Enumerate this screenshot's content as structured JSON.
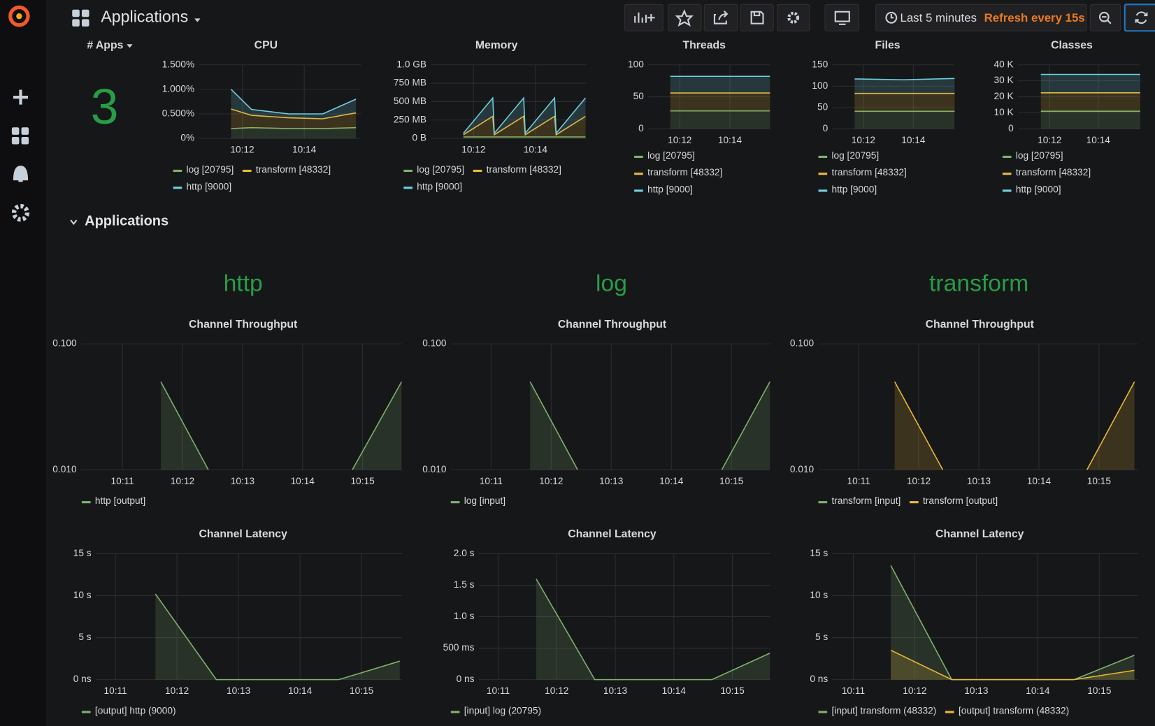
{
  "header": {
    "title": "Applications",
    "time_range": "Last 5 minutes",
    "refresh": "Refresh every 15s"
  },
  "stat": {
    "title": "# Apps",
    "value": 3
  },
  "row_title": "Applications",
  "app_titles": [
    "http",
    "log",
    "transform"
  ],
  "chart_data": [
    {
      "type": "line",
      "title": "CPU",
      "stacked": true,
      "fill": true,
      "grid": true,
      "x": [
        611.64,
        612.3,
        613.5,
        614.6,
        615.67
      ],
      "xlim": [
        610.6,
        615.83
      ],
      "xticks": [
        {
          "value": 612,
          "label": "10:12"
        },
        {
          "value": 614,
          "label": "10:14"
        }
      ],
      "ylim": [
        0,
        1.5
      ],
      "yticks": [
        {
          "value": 0,
          "label": "0%"
        },
        {
          "value": 0.5,
          "label": "0.500%"
        },
        {
          "value": 1,
          "label": "1.000%"
        },
        {
          "value": 1.5,
          "label": "1.500%"
        }
      ],
      "series": [
        {
          "name": "log [20795]",
          "color": "#7eb26d",
          "values": [
            0.2,
            0.22,
            0.2,
            0.2,
            0.22
          ]
        },
        {
          "name": "transform [48332]",
          "color": "#eab839",
          "values": [
            0.4,
            0.25,
            0.22,
            0.2,
            0.3
          ]
        },
        {
          "name": "http [9000]",
          "color": "#6ed0e0",
          "values": [
            0.4,
            0.12,
            0.08,
            0.1,
            0.28
          ]
        }
      ]
    },
    {
      "type": "line",
      "title": "Memory",
      "stacked": true,
      "fill": true,
      "grid": true,
      "x": [
        611.67,
        612.62,
        612.67,
        613.62,
        613.67,
        614.62,
        614.67,
        615.62
      ],
      "xlim": [
        610.62,
        615.67
      ],
      "xticks": [
        {
          "value": 612,
          "label": "10:12"
        },
        {
          "value": 614,
          "label": "10:14"
        }
      ],
      "ylim": [
        0,
        1000
      ],
      "yticks": [
        {
          "value": 0,
          "label": "0 B"
        },
        {
          "value": 250,
          "label": "250 MB"
        },
        {
          "value": 500,
          "label": "500 MB"
        },
        {
          "value": 750,
          "label": "750 MB"
        },
        {
          "value": 1000,
          "label": "1.0 GB"
        }
      ],
      "series": [
        {
          "name": "log [20795]",
          "color": "#7eb26d",
          "values": [
            20,
            20,
            20,
            20,
            20,
            20,
            20,
            20
          ]
        },
        {
          "name": "transform [48332]",
          "color": "#eab839",
          "values": [
            30,
            280,
            30,
            280,
            30,
            280,
            30,
            280
          ]
        },
        {
          "name": "http [9000]",
          "color": "#6ed0e0",
          "values": [
            20,
            250,
            20,
            250,
            20,
            250,
            20,
            250
          ]
        }
      ]
    },
    {
      "type": "line",
      "title": "Threads",
      "stacked": true,
      "fill": true,
      "grid": true,
      "x": [
        611.62,
        613.6,
        615.6
      ],
      "xlim": [
        610.74,
        615.62
      ],
      "xticks": [
        {
          "value": 612,
          "label": "10:12"
        },
        {
          "value": 614,
          "label": "10:14"
        }
      ],
      "ylim": [
        0,
        100
      ],
      "yticks": [
        0,
        50,
        100
      ],
      "series": [
        {
          "name": "log [20795]",
          "color": "#7eb26d",
          "values": [
            28,
            28,
            28
          ]
        },
        {
          "name": "transform [48332]",
          "color": "#eab839",
          "values": [
            28,
            28,
            28
          ]
        },
        {
          "name": "http [9000]",
          "color": "#6ed0e0",
          "values": [
            26,
            26,
            26
          ]
        }
      ]
    },
    {
      "type": "line",
      "title": "Files",
      "stacked": true,
      "fill": true,
      "grid": true,
      "x": [
        611.65,
        613.6,
        615.65
      ],
      "xlim": [
        610.76,
        615.65
      ],
      "xticks": [
        {
          "value": 612,
          "label": "10:12"
        },
        {
          "value": 614,
          "label": "10:14"
        }
      ],
      "ylim": [
        0,
        150
      ],
      "yticks": [
        0,
        50,
        100,
        150
      ],
      "series": [
        {
          "name": "log [20795]",
          "color": "#7eb26d",
          "values": [
            41,
            41,
            41
          ]
        },
        {
          "name": "transform [48332]",
          "color": "#eab839",
          "values": [
            42,
            42,
            42
          ]
        },
        {
          "name": "http [9000]",
          "color": "#6ed0e0",
          "values": [
            34,
            32,
            35
          ]
        }
      ]
    },
    {
      "type": "line",
      "title": "Classes",
      "stacked": true,
      "fill": true,
      "grid": true,
      "x": [
        611.64,
        613.7,
        615.73
      ],
      "xlim": [
        610.7,
        615.73
      ],
      "xticks": [
        {
          "value": 612,
          "label": "10:12"
        },
        {
          "value": 614,
          "label": "10:14"
        }
      ],
      "ylim": [
        0,
        40000
      ],
      "yticks": [
        0,
        {
          "value": 10000,
          "label": "10 K"
        },
        {
          "value": 20000,
          "label": "20 K"
        },
        {
          "value": 30000,
          "label": "30 K"
        },
        {
          "value": 40000,
          "label": "40 K"
        }
      ],
      "series": [
        {
          "name": "log [20795]",
          "color": "#7eb26d",
          "values": [
            11000,
            11000,
            11000
          ]
        },
        {
          "name": "transform [48332]",
          "color": "#eab839",
          "values": [
            11500,
            11500,
            11500
          ]
        },
        {
          "name": "http [9000]",
          "color": "#6ed0e0",
          "values": [
            11500,
            11500,
            11500
          ]
        }
      ]
    },
    {
      "type": "line",
      "title": "Channel Throughput",
      "log_scale": true,
      "fill": true,
      "grid": true,
      "x": [
        611.64,
        612.43,
        613.6,
        614.83,
        615.65
      ],
      "xlim": [
        610.31,
        615.66
      ],
      "xticks": [
        {
          "value": 611,
          "label": "10:11"
        },
        {
          "value": 612,
          "label": "10:12"
        },
        {
          "value": 613,
          "label": "10:13"
        },
        {
          "value": 614,
          "label": "10:14"
        },
        {
          "value": 615,
          "label": "10:15"
        }
      ],
      "ylim": [
        0.01,
        0.1
      ],
      "yticks": [
        {
          "value": 0.01,
          "label": "0.010"
        },
        {
          "value": 0.1,
          "label": "0.100"
        }
      ],
      "series": [
        {
          "name": "http [output]",
          "color": "#7eb26d",
          "values": [
            0.05,
            0.01,
            null,
            0.01,
            0.05
          ]
        }
      ]
    },
    {
      "type": "line",
      "title": "Channel Throughput",
      "log_scale": true,
      "fill": true,
      "grid": true,
      "x": [
        611.65,
        612.44,
        613.6,
        614.84,
        615.64
      ],
      "xlim": [
        610.33,
        615.65
      ],
      "xticks": [
        {
          "value": 611,
          "label": "10:11"
        },
        {
          "value": 612,
          "label": "10:12"
        },
        {
          "value": 613,
          "label": "10:13"
        },
        {
          "value": 614,
          "label": "10:14"
        },
        {
          "value": 615,
          "label": "10:15"
        }
      ],
      "ylim": [
        0.01,
        0.1
      ],
      "yticks": [
        {
          "value": 0.01,
          "label": "0.010"
        },
        {
          "value": 0.1,
          "label": "0.100"
        }
      ],
      "series": [
        {
          "name": "log [input]",
          "color": "#7eb26d",
          "values": [
            0.05,
            0.01,
            null,
            0.01,
            0.05
          ]
        }
      ]
    },
    {
      "type": "line",
      "title": "Channel Throughput",
      "log_scale": true,
      "fill": true,
      "grid": true,
      "x": [
        611.6,
        612.4,
        613.6,
        614.8,
        615.59
      ],
      "xlim": [
        610.33,
        615.65
      ],
      "xticks": [
        {
          "value": 611,
          "label": "10:11"
        },
        {
          "value": 612,
          "label": "10:12"
        },
        {
          "value": 613,
          "label": "10:13"
        },
        {
          "value": 614,
          "label": "10:14"
        },
        {
          "value": 615,
          "label": "10:15"
        }
      ],
      "ylim": [
        0.01,
        0.1
      ],
      "yticks": [
        {
          "value": 0.01,
          "label": "0.010"
        },
        {
          "value": 0.1,
          "label": "0.100"
        }
      ],
      "series": [
        {
          "name": "transform [input]",
          "color": "#7eb26d",
          "values": [
            null,
            null,
            null,
            null,
            null
          ]
        },
        {
          "name": "transform [output]",
          "color": "#eab839",
          "values": [
            0.05,
            0.01,
            null,
            0.01,
            0.05
          ]
        }
      ]
    },
    {
      "type": "line",
      "title": "Channel Latency",
      "fill": true,
      "grid": true,
      "x": [
        611.65,
        612.64,
        614.63,
        615.62
      ],
      "xlim": [
        610.68,
        615.66
      ],
      "xticks": [
        {
          "value": 611,
          "label": "10:11"
        },
        {
          "value": 612,
          "label": "10:12"
        },
        {
          "value": 613,
          "label": "10:13"
        },
        {
          "value": 614,
          "label": "10:14"
        },
        {
          "value": 615,
          "label": "10:15"
        }
      ],
      "ylim": [
        0,
        15
      ],
      "yticks": [
        {
          "value": 0,
          "label": "0 ns"
        },
        {
          "value": 5,
          "label": "5 s"
        },
        {
          "value": 10,
          "label": "10 s"
        },
        {
          "value": 15,
          "label": "15 s"
        }
      ],
      "series": [
        {
          "name": "[output] http (9000)",
          "color": "#7eb26d",
          "values": [
            10.2,
            0,
            0,
            2.2
          ]
        }
      ]
    },
    {
      "type": "line",
      "title": "Channel Latency",
      "fill": true,
      "grid": true,
      "x": [
        611.65,
        612.65,
        614.65,
        615.64
      ],
      "xlim": [
        610.67,
        615.65
      ],
      "xticks": [
        {
          "value": 611,
          "label": "10:11"
        },
        {
          "value": 612,
          "label": "10:12"
        },
        {
          "value": 613,
          "label": "10:13"
        },
        {
          "value": 614,
          "label": "10:14"
        },
        {
          "value": 615,
          "label": "10:15"
        }
      ],
      "ylim": [
        0,
        2
      ],
      "yticks": [
        {
          "value": 0,
          "label": "0 ns"
        },
        {
          "value": 0.5,
          "label": "500 ms"
        },
        {
          "value": 1,
          "label": "1.0 s"
        },
        {
          "value": 1.5,
          "label": "1.5 s"
        },
        {
          "value": 2,
          "label": "2.0 s"
        }
      ],
      "series": [
        {
          "name": "[input] log (20795)",
          "color": "#7eb26d",
          "values": [
            1.6,
            0,
            0,
            0.42
          ]
        }
      ]
    },
    {
      "type": "line",
      "title": "Channel Latency",
      "fill": true,
      "grid": true,
      "x": [
        611.61,
        612.6,
        614.59,
        615.57
      ],
      "xlim": [
        610.66,
        615.63
      ],
      "xticks": [
        {
          "value": 611,
          "label": "10:11"
        },
        {
          "value": 612,
          "label": "10:12"
        },
        {
          "value": 613,
          "label": "10:13"
        },
        {
          "value": 614,
          "label": "10:14"
        },
        {
          "value": 615,
          "label": "10:15"
        }
      ],
      "ylim": [
        0,
        15
      ],
      "yticks": [
        {
          "value": 0,
          "label": "0 ns"
        },
        {
          "value": 5,
          "label": "5 s"
        },
        {
          "value": 10,
          "label": "10 s"
        },
        {
          "value": 15,
          "label": "15 s"
        }
      ],
      "series": [
        {
          "name": "[input] transform (48332)",
          "color": "#7eb26d",
          "values": [
            13.6,
            0,
            0,
            2.9
          ]
        },
        {
          "name": "[output] transform (48332)",
          "color": "#eab839",
          "values": [
            3.5,
            0,
            0,
            1.1
          ]
        }
      ]
    }
  ]
}
